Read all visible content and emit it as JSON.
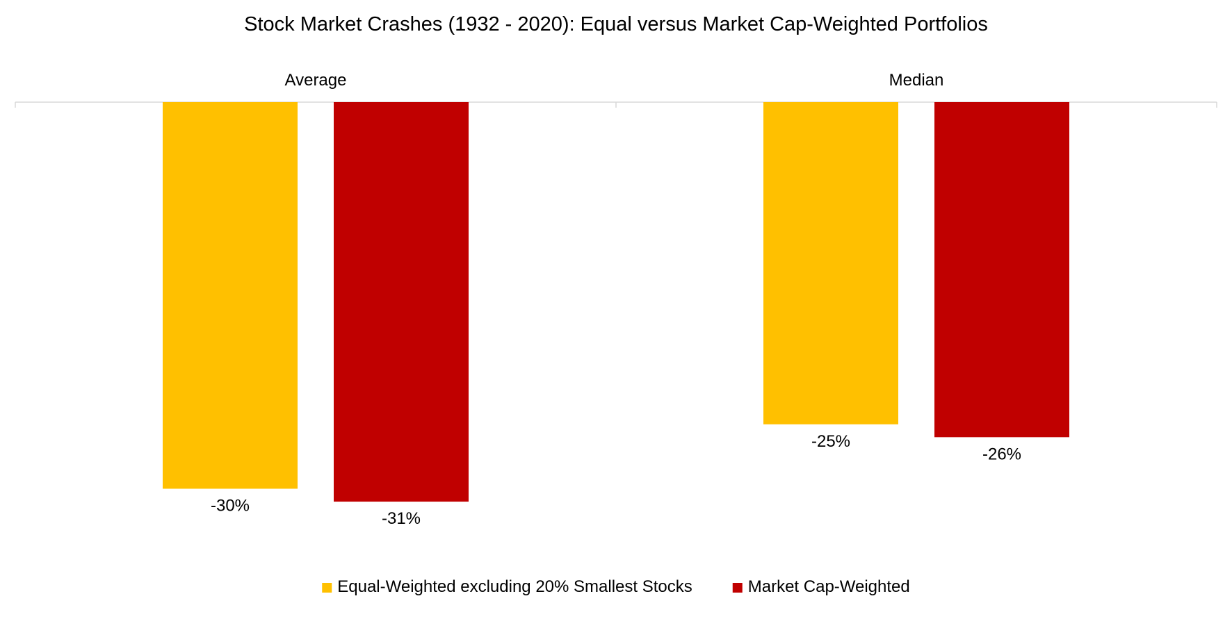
{
  "chart_data": {
    "type": "bar",
    "title": "Stock Market Crashes (1932 - 2020): Equal versus Market Cap-Weighted Portfolios",
    "categories": [
      "Average",
      "Median"
    ],
    "series": [
      {
        "name": "Equal-Weighted excluding 20% Smallest Stocks",
        "color": "#FFC000",
        "values": [
          -30,
          -25
        ],
        "labels": [
          "-30%",
          "-25%"
        ]
      },
      {
        "name": "Market Cap-Weighted",
        "color": "#C00000",
        "values": [
          -31,
          -26
        ],
        "labels": [
          "-31%",
          "-26%"
        ]
      }
    ],
    "value_unit": "%",
    "ylim": [
      -35,
      0
    ],
    "category_labels_position": "top",
    "legend_position": "bottom",
    "grid": false,
    "axis_color": "#D9D9D9"
  }
}
